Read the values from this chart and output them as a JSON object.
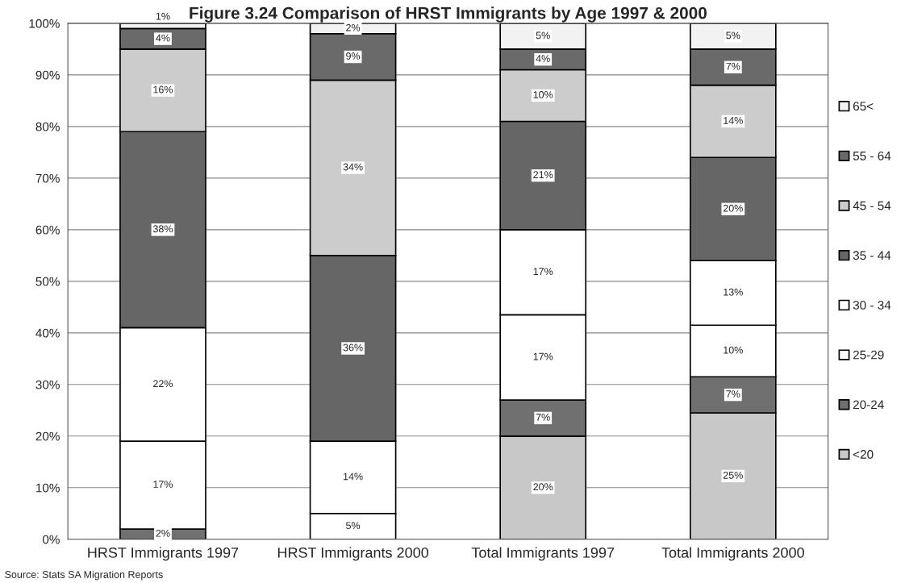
{
  "chart_data": {
    "type": "bar",
    "stacked": true,
    "title": "Figure 3.24 Comparison of HRST Immigrants by Age 1997 & 2000",
    "categories": [
      "HRST Immigrants 1997",
      "HRST Immigrants 2000",
      "Total Immigrants 1997",
      "Total Immigrants 2000"
    ],
    "series": [
      {
        "name": "<20",
        "color": "#c8c8c8",
        "values": [
          0,
          0,
          20,
          24.5
        ],
        "value_labels": [
          null,
          null,
          "20%",
          "25%"
        ]
      },
      {
        "name": "20-24",
        "color": "#707070",
        "values": [
          2,
          0,
          7,
          7
        ],
        "value_labels": [
          "2%",
          null,
          "7%",
          "7%"
        ]
      },
      {
        "name": "25-29",
        "color": "#ffffff",
        "values": [
          17,
          5,
          16.5,
          10
        ],
        "value_labels": [
          "17%",
          "5%",
          "17%",
          "10%"
        ]
      },
      {
        "name": "30 - 34",
        "color": "#ffffff",
        "values": [
          22,
          14,
          16.5,
          12.5
        ],
        "value_labels": [
          "22%",
          "14%",
          "17%",
          "13%"
        ]
      },
      {
        "name": "35 - 44",
        "color": "#666666",
        "values": [
          38,
          36,
          21,
          20
        ],
        "value_labels": [
          "38%",
          "36%",
          "21%",
          "20%"
        ]
      },
      {
        "name": "45 - 54",
        "color": "#cccccc",
        "values": [
          16,
          34,
          10,
          14
        ],
        "value_labels": [
          "16%",
          "34%",
          "10%",
          "14%"
        ]
      },
      {
        "name": "55 - 64",
        "color": "#6a6a6a",
        "values": [
          4,
          9,
          4,
          7
        ],
        "value_labels": [
          "4%",
          "9%",
          "4%",
          "7%"
        ]
      },
      {
        "name": "65<",
        "color": "#f2f2f2",
        "values": [
          1,
          2,
          5,
          5
        ],
        "value_labels": [
          "1%",
          "2%",
          "5%",
          "5%"
        ]
      }
    ],
    "ylim": [
      0,
      100
    ],
    "yticks": [
      {
        "value": 0,
        "label": "0%"
      },
      {
        "value": 10,
        "label": "10%"
      },
      {
        "value": 20,
        "label": "20%"
      },
      {
        "value": 30,
        "label": "30%"
      },
      {
        "value": 40,
        "label": "40%"
      },
      {
        "value": 50,
        "label": "50%"
      },
      {
        "value": 60,
        "label": "60%"
      },
      {
        "value": 70,
        "label": "70%"
      },
      {
        "value": 80,
        "label": "80%"
      },
      {
        "value": 90,
        "label": "90%"
      },
      {
        "value": 100,
        "label": "100%"
      }
    ],
    "grid": "y",
    "legend": "right",
    "annotations": [
      "Source: Stats SA Migration Reports"
    ]
  }
}
